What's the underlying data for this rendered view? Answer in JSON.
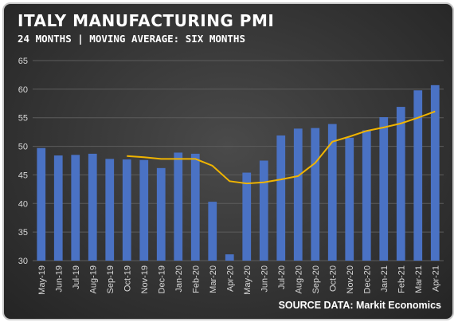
{
  "title": "ITALY MANUFACTURING PMI",
  "subtitle": "24 MONTHS | MOVING AVERAGE: SIX MONTHS",
  "source": "SOURCE DATA: Markit Economics",
  "colors": {
    "bar": "#4a72c4",
    "line": "#f0b400",
    "grid": "#5c5c5c",
    "text": "#d8d8d8"
  },
  "chart_data": {
    "type": "bar",
    "categories": [
      "May-19",
      "Jun-19",
      "Jul-19",
      "Aug-19",
      "Sep-19",
      "Oct-19",
      "Nov-19",
      "Dec-19",
      "Jan-20",
      "Feb-20",
      "Mar-20",
      "Apr-20",
      "May-20",
      "Jun-20",
      "Jul-20",
      "Aug-20",
      "Sep-20",
      "Oct-20",
      "Nov-20",
      "Dec-20",
      "Jan-21",
      "Feb-21",
      "Mar-21",
      "Apr-21"
    ],
    "series": [
      {
        "type": "bar",
        "values": [
          49.7,
          48.4,
          48.5,
          48.7,
          47.8,
          47.7,
          47.6,
          46.2,
          48.9,
          48.7,
          40.3,
          31.1,
          45.4,
          47.5,
          51.9,
          53.1,
          53.2,
          53.9,
          51.5,
          52.8,
          55.1,
          56.9,
          59.8,
          60.7
        ]
      },
      {
        "type": "line",
        "values": [
          null,
          null,
          null,
          null,
          null,
          48.3,
          48.1,
          47.8,
          47.8,
          47.8,
          46.6,
          43.9,
          43.5,
          43.7,
          44.2,
          44.8,
          47.1,
          50.8,
          51.7,
          52.7,
          53.3,
          54.0,
          55.0,
          56.1
        ]
      }
    ],
    "yticks": [
      30,
      35,
      40,
      45,
      50,
      55,
      60,
      65
    ],
    "ylim": [
      30,
      65
    ],
    "grid": true,
    "xlabel": "",
    "ylabel": ""
  }
}
